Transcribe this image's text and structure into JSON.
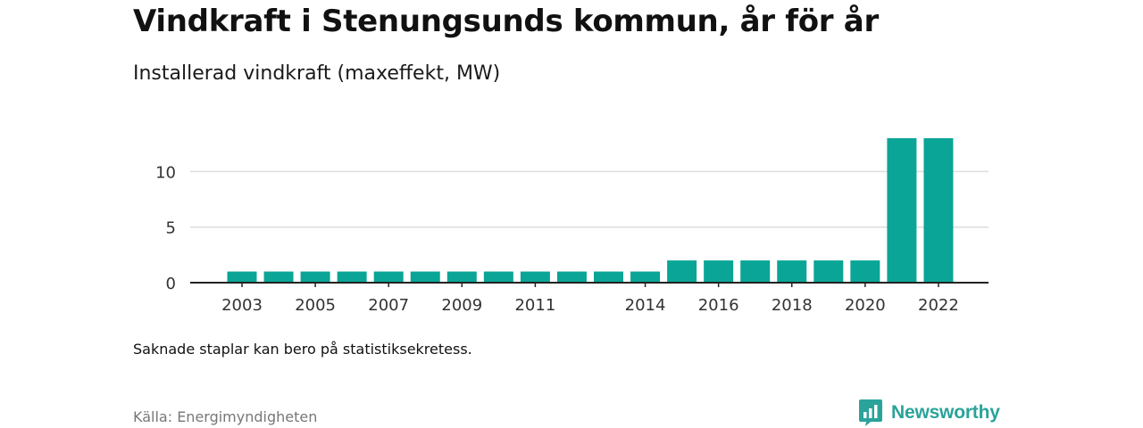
{
  "title": "Vindkraft i Stenungsunds kommun, år för år",
  "subtitle": "Installerad vindkraft (maxeffekt, MW)",
  "note": "Saknade staplar kan bero på statistiksekretess.",
  "source": "Källa: Energimyndigheten",
  "logo": {
    "text": "Newsworthy",
    "icon": "newsworthy-logo-icon"
  },
  "colors": {
    "bar": "#0aa596",
    "grid": "#dddddd",
    "axis": "#222222",
    "text": "#333333",
    "brand": "#2aa39a"
  },
  "chart_data": {
    "type": "bar",
    "categories": [
      "2003",
      "2004",
      "2005",
      "2006",
      "2007",
      "2008",
      "2009",
      "2010",
      "2011",
      "2012",
      "2013",
      "2014",
      "2015",
      "2016",
      "2017",
      "2018",
      "2019",
      "2020",
      "2021",
      "2022"
    ],
    "values": [
      1,
      1,
      1,
      1,
      1,
      1,
      1,
      1,
      1,
      1,
      1,
      1,
      2,
      2,
      2,
      2,
      2,
      2,
      13,
      13
    ],
    "x_tick_labels": [
      "2003",
      "2005",
      "2007",
      "2009",
      "2011",
      "2014",
      "2016",
      "2018",
      "2020",
      "2022"
    ],
    "y_ticks": [
      0,
      5,
      10
    ],
    "ylim": [
      0,
      13
    ],
    "grid": true,
    "legend": "none"
  }
}
